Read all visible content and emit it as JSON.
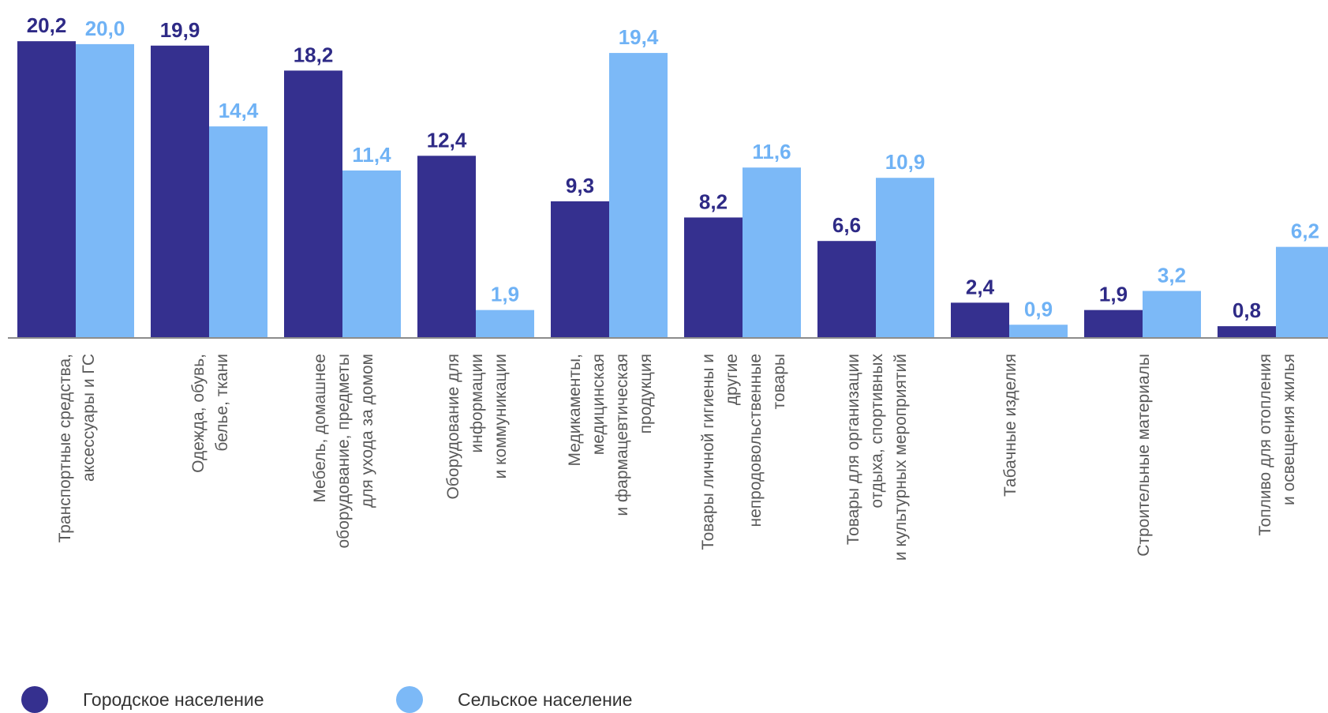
{
  "chart_data": {
    "type": "bar",
    "title": "",
    "xlabel": "",
    "ylabel": "",
    "ylim": [
      0,
      21.5
    ],
    "grid": false,
    "legend_position": "bottom-left",
    "categories": [
      [
        "Транспортные средства,",
        "аксессуары и ГС"
      ],
      [
        "Одежда, обувь,",
        "белье, ткани"
      ],
      [
        "Мебель, домашнее",
        "оборудование, предметы",
        "для ухода за домом"
      ],
      [
        "Оборудование для",
        "информации",
        "и коммуникации"
      ],
      [
        "Медикаменты,",
        "медицинская",
        "и фармацевтическая",
        "продукция"
      ],
      [
        "Товары личной гигиены и",
        "другие",
        "непродовольственные",
        "товары"
      ],
      [
        "Товары для организации",
        "отдыха, спортивных",
        "и культурных мероприятий"
      ],
      [
        "Табачные изделия"
      ],
      [
        "Строительные материалы"
      ],
      [
        "Топливо для отопления",
        "и освещения жилья"
      ]
    ],
    "series": [
      {
        "name": "Городское население",
        "color": "#35308f",
        "values": [
          20.2,
          19.9,
          18.2,
          12.4,
          9.3,
          8.2,
          6.6,
          2.4,
          1.9,
          0.8
        ],
        "labels": [
          "20,2",
          "19,9",
          "18,2",
          "12,4",
          "9,3",
          "8,2",
          "6,6",
          "2,4",
          "1,9",
          "0,8"
        ]
      },
      {
        "name": "Сельское население",
        "color": "#7cb9f7",
        "values": [
          20.0,
          14.4,
          11.4,
          1.9,
          19.4,
          11.6,
          10.9,
          0.9,
          3.2,
          6.2
        ],
        "labels": [
          "20,0",
          "14,4",
          "11,4",
          "1,9",
          "19,4",
          "11,6",
          "10,9",
          "0,9",
          "3,2",
          "6,2"
        ]
      }
    ]
  }
}
